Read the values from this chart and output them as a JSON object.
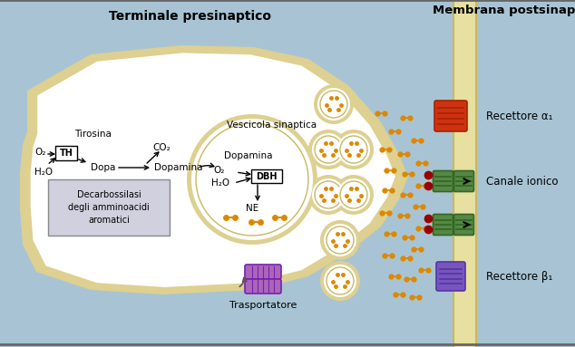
{
  "bg_color": "#a8c4d4",
  "terminal_fill": "#ffffff",
  "terminal_border": "#ddd090",
  "membrane_color": "#e8e0a0",
  "membrane_border": "#c8b860",
  "title_left": "Terminale presinaptico",
  "title_right": "Membrana postsinaptica",
  "label_tirosina": "Tirosina",
  "label_o2_1": "O₂",
  "label_th": "TH",
  "label_dopa": "Dopa",
  "label_co2": "CO₂",
  "label_dopamina1": "Dopamina",
  "label_h2o": "H₂O",
  "label_decarbossilasi": "Decarbossilasi\ndegli amminoacidi\naromatici",
  "label_vescicola": "Vescicola sinaptica",
  "label_dopamina2": "Dopamina",
  "label_o2_2": "O₂",
  "label_h2o2": "H₂O",
  "label_dbh": "DBH",
  "label_ne": "NE",
  "label_trasportatore": "Trasportatore",
  "label_recettore_alpha": "Recettore α₁",
  "label_canale_ionico": "Canale ionico",
  "label_recettore_beta": "Recettore β₁",
  "receptor_alpha_color": "#cc3311",
  "receptor_alpha_dark": "#aa2200",
  "receptor_beta_color": "#7755bb",
  "receptor_beta_dark": "#5533aa",
  "channel_color": "#558844",
  "channel_dark": "#336622",
  "transporter_color": "#aa66bb",
  "transporter_dark": "#7722aa",
  "neurotransmitter_color": "#dd8800",
  "dark_red_dot": "#990000",
  "vesicle_border": "#b0a050",
  "vesicle_inner": "#c8b860"
}
